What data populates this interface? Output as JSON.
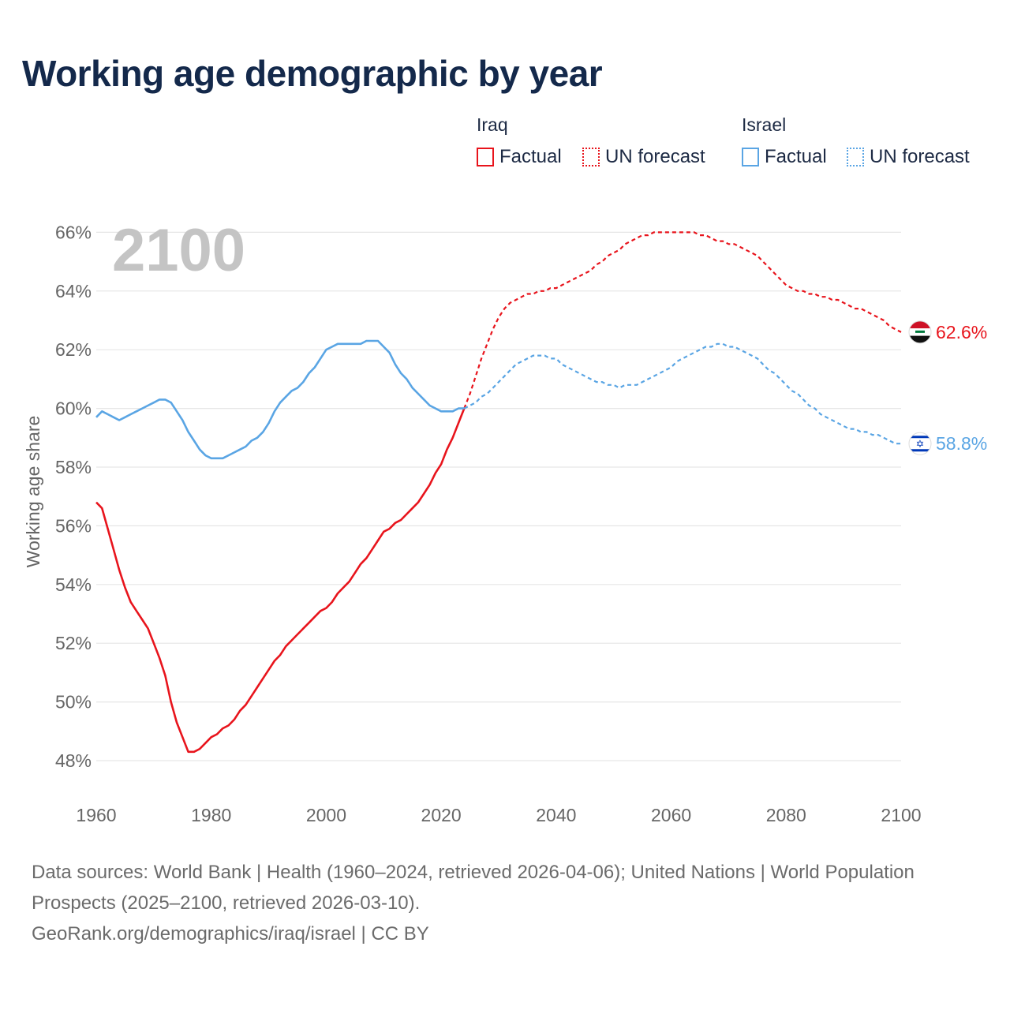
{
  "title": "Working age demographic by year",
  "year_watermark": "2100",
  "legend": {
    "groups": [
      {
        "name": "Iraq",
        "factual": "Factual",
        "forecast": "UN forecast",
        "color": "#e8141c"
      },
      {
        "name": "Israel",
        "factual": "Factual",
        "forecast": "UN forecast",
        "color": "#5aa5e4"
      }
    ]
  },
  "sources": {
    "line1": "Data sources: World Bank | Health (1960–2024, retrieved 2026-04-06); United Nations | World Population Prospects (2025–2100, retrieved 2026-03-10).",
    "line2": "GeoRank.org/demographics/iraq/israel | CC BY"
  },
  "chart_data": {
    "type": "line",
    "title": "Working age demographic by year",
    "xlabel": "",
    "ylabel": "Working age share",
    "xlim": [
      1960,
      2100
    ],
    "ylim": [
      47,
      67
    ],
    "x_ticks": [
      1960,
      1980,
      2000,
      2020,
      2040,
      2060,
      2080,
      2100
    ],
    "x_tick_labels": [
      "1960",
      "1980",
      "2000",
      "2020",
      "2040",
      "2060",
      "2080",
      "2100"
    ],
    "y_ticks": [
      48,
      50,
      52,
      54,
      56,
      58,
      60,
      62,
      64,
      66
    ],
    "y_tick_labels": [
      "48%",
      "50%",
      "52%",
      "54%",
      "56%",
      "58%",
      "60%",
      "62%",
      "64%",
      "66%"
    ],
    "grid": true,
    "series": [
      {
        "name": "Iraq",
        "color": "#e8141c",
        "end_label": "62.6%",
        "factual": {
          "x": [
            1960,
            1961,
            1962,
            1963,
            1964,
            1965,
            1966,
            1967,
            1968,
            1969,
            1970,
            1971,
            1972,
            1973,
            1974,
            1975,
            1976,
            1977,
            1978,
            1979,
            1980,
            1981,
            1982,
            1983,
            1984,
            1985,
            1986,
            1987,
            1988,
            1989,
            1990,
            1991,
            1992,
            1993,
            1994,
            1995,
            1996,
            1997,
            1998,
            1999,
            2000,
            2001,
            2002,
            2003,
            2004,
            2005,
            2006,
            2007,
            2008,
            2009,
            2010,
            2011,
            2012,
            2013,
            2014,
            2015,
            2016,
            2017,
            2018,
            2019,
            2020,
            2021,
            2022,
            2023,
            2024
          ],
          "y": [
            56.8,
            56.6,
            55.9,
            55.2,
            54.5,
            53.9,
            53.4,
            53.1,
            52.8,
            52.5,
            52.0,
            51.5,
            50.9,
            50.0,
            49.3,
            48.8,
            48.3,
            48.3,
            48.4,
            48.6,
            48.8,
            48.9,
            49.1,
            49.2,
            49.4,
            49.7,
            49.9,
            50.2,
            50.5,
            50.8,
            51.1,
            51.4,
            51.6,
            51.9,
            52.1,
            52.3,
            52.5,
            52.7,
            52.9,
            53.1,
            53.2,
            53.4,
            53.7,
            53.9,
            54.1,
            54.4,
            54.7,
            54.9,
            55.2,
            55.5,
            55.8,
            55.9,
            56.1,
            56.2,
            56.4,
            56.6,
            56.8,
            57.1,
            57.4,
            57.8,
            58.1,
            58.6,
            59.0,
            59.5,
            60.0
          ]
        },
        "forecast": {
          "x": [
            2024,
            2025,
            2026,
            2027,
            2028,
            2029,
            2030,
            2031,
            2032,
            2033,
            2034,
            2035,
            2036,
            2037,
            2038,
            2039,
            2040,
            2041,
            2042,
            2043,
            2044,
            2045,
            2046,
            2047,
            2048,
            2049,
            2050,
            2051,
            2052,
            2053,
            2054,
            2055,
            2056,
            2057,
            2058,
            2059,
            2060,
            2061,
            2062,
            2063,
            2064,
            2065,
            2066,
            2067,
            2068,
            2069,
            2070,
            2071,
            2072,
            2073,
            2074,
            2075,
            2076,
            2077,
            2078,
            2079,
            2080,
            2081,
            2082,
            2083,
            2084,
            2085,
            2086,
            2087,
            2088,
            2089,
            2090,
            2091,
            2092,
            2093,
            2094,
            2095,
            2096,
            2097,
            2098,
            2099,
            2100
          ],
          "y": [
            60.0,
            60.5,
            61.1,
            61.7,
            62.2,
            62.7,
            63.1,
            63.4,
            63.6,
            63.7,
            63.8,
            63.9,
            63.9,
            64.0,
            64.0,
            64.1,
            64.1,
            64.2,
            64.3,
            64.4,
            64.5,
            64.6,
            64.7,
            64.9,
            65.0,
            65.2,
            65.3,
            65.4,
            65.6,
            65.7,
            65.8,
            65.9,
            65.9,
            66.0,
            66.0,
            66.0,
            66.0,
            66.0,
            66.0,
            66.0,
            66.0,
            65.9,
            65.9,
            65.8,
            65.7,
            65.7,
            65.6,
            65.6,
            65.5,
            65.4,
            65.3,
            65.2,
            65.0,
            64.8,
            64.6,
            64.4,
            64.2,
            64.1,
            64.0,
            64.0,
            63.9,
            63.9,
            63.8,
            63.8,
            63.7,
            63.7,
            63.6,
            63.5,
            63.4,
            63.4,
            63.3,
            63.2,
            63.1,
            63.0,
            62.8,
            62.7,
            62.6
          ]
        }
      },
      {
        "name": "Israel",
        "color": "#5aa5e4",
        "end_label": "58.8%",
        "factual": {
          "x": [
            1960,
            1961,
            1962,
            1963,
            1964,
            1965,
            1966,
            1967,
            1968,
            1969,
            1970,
            1971,
            1972,
            1973,
            1974,
            1975,
            1976,
            1977,
            1978,
            1979,
            1980,
            1981,
            1982,
            1983,
            1984,
            1985,
            1986,
            1987,
            1988,
            1989,
            1990,
            1991,
            1992,
            1993,
            1994,
            1995,
            1996,
            1997,
            1998,
            1999,
            2000,
            2001,
            2002,
            2003,
            2004,
            2005,
            2006,
            2007,
            2008,
            2009,
            2010,
            2011,
            2012,
            2013,
            2014,
            2015,
            2016,
            2017,
            2018,
            2019,
            2020,
            2021,
            2022,
            2023,
            2024
          ],
          "y": [
            59.7,
            59.9,
            59.8,
            59.7,
            59.6,
            59.7,
            59.8,
            59.9,
            60.0,
            60.1,
            60.2,
            60.3,
            60.3,
            60.2,
            59.9,
            59.6,
            59.2,
            58.9,
            58.6,
            58.4,
            58.3,
            58.3,
            58.3,
            58.4,
            58.5,
            58.6,
            58.7,
            58.9,
            59.0,
            59.2,
            59.5,
            59.9,
            60.2,
            60.4,
            60.6,
            60.7,
            60.9,
            61.2,
            61.4,
            61.7,
            62.0,
            62.1,
            62.2,
            62.2,
            62.2,
            62.2,
            62.2,
            62.3,
            62.3,
            62.3,
            62.1,
            61.9,
            61.5,
            61.2,
            61.0,
            60.7,
            60.5,
            60.3,
            60.1,
            60.0,
            59.9,
            59.9,
            59.9,
            60.0,
            60.0
          ]
        },
        "forecast": {
          "x": [
            2024,
            2025,
            2026,
            2027,
            2028,
            2029,
            2030,
            2031,
            2032,
            2033,
            2034,
            2035,
            2036,
            2037,
            2038,
            2039,
            2040,
            2041,
            2042,
            2043,
            2044,
            2045,
            2046,
            2047,
            2048,
            2049,
            2050,
            2051,
            2052,
            2053,
            2054,
            2055,
            2056,
            2057,
            2058,
            2059,
            2060,
            2061,
            2062,
            2063,
            2064,
            2065,
            2066,
            2067,
            2068,
            2069,
            2070,
            2071,
            2072,
            2073,
            2074,
            2075,
            2076,
            2077,
            2078,
            2079,
            2080,
            2081,
            2082,
            2083,
            2084,
            2085,
            2086,
            2087,
            2088,
            2089,
            2090,
            2091,
            2092,
            2093,
            2094,
            2095,
            2096,
            2097,
            2098,
            2099,
            2100
          ],
          "y": [
            60.0,
            60.1,
            60.2,
            60.4,
            60.5,
            60.7,
            60.9,
            61.1,
            61.3,
            61.5,
            61.6,
            61.7,
            61.8,
            61.8,
            61.8,
            61.7,
            61.7,
            61.5,
            61.4,
            61.3,
            61.2,
            61.1,
            61.0,
            60.9,
            60.9,
            60.8,
            60.8,
            60.7,
            60.8,
            60.8,
            60.8,
            60.9,
            61.0,
            61.1,
            61.2,
            61.3,
            61.4,
            61.6,
            61.7,
            61.8,
            61.9,
            62.0,
            62.1,
            62.1,
            62.2,
            62.2,
            62.1,
            62.1,
            62.0,
            61.9,
            61.8,
            61.7,
            61.5,
            61.3,
            61.2,
            61.0,
            60.8,
            60.6,
            60.5,
            60.3,
            60.1,
            60.0,
            59.8,
            59.7,
            59.6,
            59.5,
            59.4,
            59.3,
            59.3,
            59.2,
            59.2,
            59.1,
            59.1,
            59.0,
            58.9,
            58.8,
            58.8
          ]
        }
      }
    ]
  }
}
